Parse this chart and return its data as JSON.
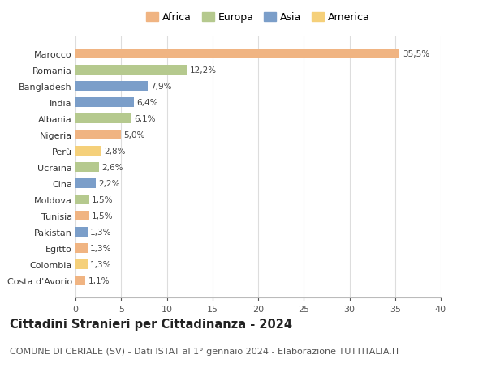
{
  "countries": [
    "Costa d'Avorio",
    "Colombia",
    "Egitto",
    "Pakistan",
    "Tunisia",
    "Moldova",
    "Cina",
    "Ucraina",
    "Perù",
    "Nigeria",
    "Albania",
    "India",
    "Bangladesh",
    "Romania",
    "Marocco"
  ],
  "values": [
    1.1,
    1.3,
    1.3,
    1.3,
    1.5,
    1.5,
    2.2,
    2.6,
    2.8,
    5.0,
    6.1,
    6.4,
    7.9,
    12.2,
    35.5
  ],
  "labels": [
    "1,1%",
    "1,3%",
    "1,3%",
    "1,3%",
    "1,5%",
    "1,5%",
    "2,2%",
    "2,6%",
    "2,8%",
    "5,0%",
    "6,1%",
    "6,4%",
    "7,9%",
    "12,2%",
    "35,5%"
  ],
  "continents": [
    "Africa",
    "America",
    "Africa",
    "Asia",
    "Africa",
    "Europa",
    "Asia",
    "Europa",
    "America",
    "Africa",
    "Europa",
    "Asia",
    "Asia",
    "Europa",
    "Africa"
  ],
  "continent_colors": {
    "Africa": "#F0B482",
    "Europa": "#B5C98E",
    "Asia": "#7B9EC9",
    "America": "#F5D07A"
  },
  "legend_order": [
    "Africa",
    "Europa",
    "Asia",
    "America"
  ],
  "title": "Cittadini Stranieri per Cittadinanza - 2024",
  "subtitle": "COMUNE DI CERIALE (SV) - Dati ISTAT al 1° gennaio 2024 - Elaborazione TUTTITALIA.IT",
  "xlim": [
    0,
    40
  ],
  "xticks": [
    0,
    5,
    10,
    15,
    20,
    25,
    30,
    35,
    40
  ],
  "bg_color": "#FFFFFF",
  "grid_color": "#DDDDDD",
  "title_fontsize": 10.5,
  "subtitle_fontsize": 8,
  "label_fontsize": 7.5,
  "tick_fontsize": 8,
  "legend_fontsize": 9
}
